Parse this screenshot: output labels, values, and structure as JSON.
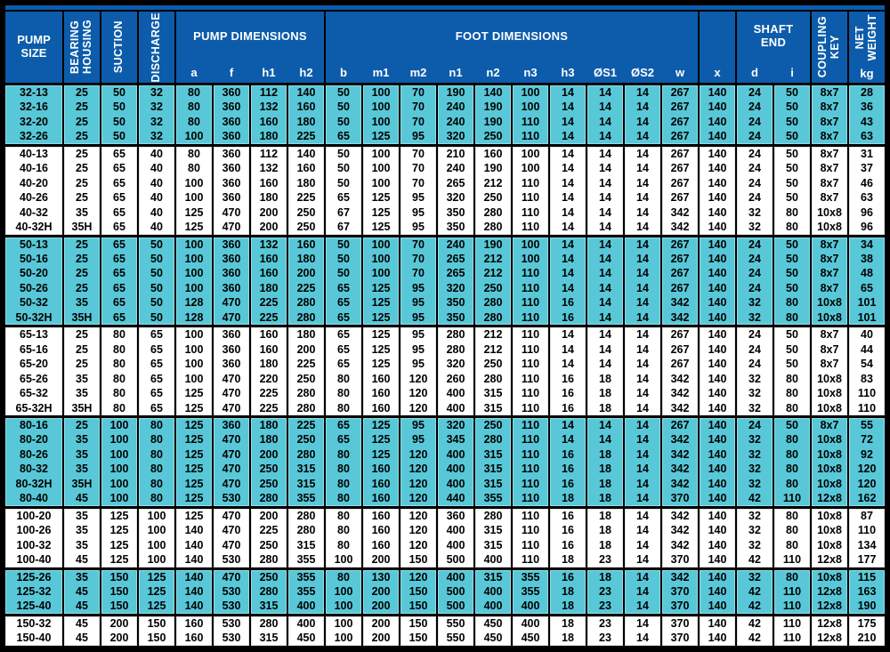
{
  "palette": {
    "header_bg": "#0d5cab",
    "header_text": "#ffffff",
    "row_cyan": "#58c8d8",
    "row_white": "#ffffff",
    "grid": "#000000",
    "data_text": "#000000"
  },
  "header": {
    "pump_size": [
      "PUMP",
      "SIZE"
    ],
    "bearing_housing": [
      "BEARING",
      "HOUSING"
    ],
    "suction": "SUCTION",
    "discharge": "DISCHARGE",
    "pump_dimensions": {
      "label": "PUMP DIMENSIONS",
      "cols": [
        "a",
        "f",
        "h1",
        "h2"
      ]
    },
    "foot_dimensions": {
      "label": "FOOT DIMENSIONS",
      "cols": [
        "b",
        "m1",
        "m2",
        "n1",
        "n2",
        "n3",
        "h3",
        "ØS1",
        "ØS2",
        "w"
      ]
    },
    "x_label": "x",
    "shaft_end": {
      "label": [
        "SHAFT",
        "END"
      ],
      "cols": [
        "d",
        "i"
      ]
    },
    "coupling_key": [
      "COUPLING",
      "KEY"
    ],
    "net_weight": {
      "label": [
        "NET",
        "WEIGHT"
      ],
      "unit": "kg"
    }
  },
  "columns": [
    "pump-size",
    "bearing-housing",
    "suction",
    "discharge",
    "a",
    "f",
    "h1",
    "h2",
    "b",
    "m1",
    "m2",
    "n1",
    "n2",
    "n3",
    "h3",
    "S1",
    "S2",
    "w",
    "x",
    "d",
    "i",
    "coupling-key",
    "kg"
  ],
  "groups": [
    {
      "name": "32",
      "bg": "cyan",
      "rows": [
        [
          "32-13",
          "25",
          "50",
          "32",
          "80",
          "360",
          "112",
          "140",
          "50",
          "100",
          "70",
          "190",
          "140",
          "100",
          "14",
          "14",
          "14",
          "267",
          "140",
          "24",
          "50",
          "8x7",
          "28"
        ],
        [
          "32-16",
          "25",
          "50",
          "32",
          "80",
          "360",
          "132",
          "160",
          "50",
          "100",
          "70",
          "240",
          "190",
          "100",
          "14",
          "14",
          "14",
          "267",
          "140",
          "24",
          "50",
          "8x7",
          "36"
        ],
        [
          "32-20",
          "25",
          "50",
          "32",
          "80",
          "360",
          "160",
          "180",
          "50",
          "100",
          "70",
          "240",
          "190",
          "110",
          "14",
          "14",
          "14",
          "267",
          "140",
          "24",
          "50",
          "8x7",
          "43"
        ],
        [
          "32-26",
          "25",
          "50",
          "32",
          "100",
          "360",
          "180",
          "225",
          "65",
          "125",
          "95",
          "320",
          "250",
          "110",
          "14",
          "14",
          "14",
          "267",
          "140",
          "24",
          "50",
          "8x7",
          "63"
        ]
      ]
    },
    {
      "name": "40",
      "bg": "white",
      "rows": [
        [
          "40-13",
          "25",
          "65",
          "40",
          "80",
          "360",
          "112",
          "140",
          "50",
          "100",
          "70",
          "210",
          "160",
          "100",
          "14",
          "14",
          "14",
          "267",
          "140",
          "24",
          "50",
          "8x7",
          "31"
        ],
        [
          "40-16",
          "25",
          "65",
          "40",
          "80",
          "360",
          "132",
          "160",
          "50",
          "100",
          "70",
          "240",
          "190",
          "100",
          "14",
          "14",
          "14",
          "267",
          "140",
          "24",
          "50",
          "8x7",
          "37"
        ],
        [
          "40-20",
          "25",
          "65",
          "40",
          "100",
          "360",
          "160",
          "180",
          "50",
          "100",
          "70",
          "265",
          "212",
          "110",
          "14",
          "14",
          "14",
          "267",
          "140",
          "24",
          "50",
          "8x7",
          "46"
        ],
        [
          "40-26",
          "25",
          "65",
          "40",
          "100",
          "360",
          "180",
          "225",
          "65",
          "125",
          "95",
          "320",
          "250",
          "110",
          "14",
          "14",
          "14",
          "267",
          "140",
          "24",
          "50",
          "8x7",
          "63"
        ],
        [
          "40-32",
          "35",
          "65",
          "40",
          "125",
          "470",
          "200",
          "250",
          "67",
          "125",
          "95",
          "350",
          "280",
          "110",
          "14",
          "14",
          "14",
          "342",
          "140",
          "32",
          "80",
          "10x8",
          "96"
        ],
        [
          "40-32H",
          "35H",
          "65",
          "40",
          "125",
          "470",
          "200",
          "250",
          "67",
          "125",
          "95",
          "350",
          "280",
          "110",
          "14",
          "14",
          "14",
          "342",
          "140",
          "32",
          "80",
          "10x8",
          "96"
        ]
      ]
    },
    {
      "name": "50",
      "bg": "cyan",
      "rows": [
        [
          "50-13",
          "25",
          "65",
          "50",
          "100",
          "360",
          "132",
          "160",
          "50",
          "100",
          "70",
          "240",
          "190",
          "100",
          "14",
          "14",
          "14",
          "267",
          "140",
          "24",
          "50",
          "8x7",
          "34"
        ],
        [
          "50-16",
          "25",
          "65",
          "50",
          "100",
          "360",
          "160",
          "180",
          "50",
          "100",
          "70",
          "265",
          "212",
          "100",
          "14",
          "14",
          "14",
          "267",
          "140",
          "24",
          "50",
          "8x7",
          "38"
        ],
        [
          "50-20",
          "25",
          "65",
          "50",
          "100",
          "360",
          "160",
          "200",
          "50",
          "100",
          "70",
          "265",
          "212",
          "110",
          "14",
          "14",
          "14",
          "267",
          "140",
          "24",
          "50",
          "8x7",
          "48"
        ],
        [
          "50-26",
          "25",
          "65",
          "50",
          "100",
          "360",
          "180",
          "225",
          "65",
          "125",
          "95",
          "320",
          "250",
          "110",
          "14",
          "14",
          "14",
          "267",
          "140",
          "24",
          "50",
          "8x7",
          "65"
        ],
        [
          "50-32",
          "35",
          "65",
          "50",
          "128",
          "470",
          "225",
          "280",
          "65",
          "125",
          "95",
          "350",
          "280",
          "110",
          "16",
          "14",
          "14",
          "342",
          "140",
          "32",
          "80",
          "10x8",
          "101"
        ],
        [
          "50-32H",
          "35H",
          "65",
          "50",
          "128",
          "470",
          "225",
          "280",
          "65",
          "125",
          "95",
          "350",
          "280",
          "110",
          "16",
          "14",
          "14",
          "342",
          "140",
          "32",
          "80",
          "10x8",
          "101"
        ]
      ]
    },
    {
      "name": "65",
      "bg": "white",
      "rows": [
        [
          "65-13",
          "25",
          "80",
          "65",
          "100",
          "360",
          "160",
          "180",
          "65",
          "125",
          "95",
          "280",
          "212",
          "110",
          "14",
          "14",
          "14",
          "267",
          "140",
          "24",
          "50",
          "8x7",
          "40"
        ],
        [
          "65-16",
          "25",
          "80",
          "65",
          "100",
          "360",
          "160",
          "200",
          "65",
          "125",
          "95",
          "280",
          "212",
          "110",
          "14",
          "14",
          "14",
          "267",
          "140",
          "24",
          "50",
          "8x7",
          "44"
        ],
        [
          "65-20",
          "25",
          "80",
          "65",
          "100",
          "360",
          "180",
          "225",
          "65",
          "125",
          "95",
          "320",
          "250",
          "110",
          "14",
          "14",
          "14",
          "267",
          "140",
          "24",
          "50",
          "8x7",
          "54"
        ],
        [
          "65-26",
          "35",
          "80",
          "65",
          "100",
          "470",
          "220",
          "250",
          "80",
          "160",
          "120",
          "260",
          "280",
          "110",
          "16",
          "18",
          "14",
          "342",
          "140",
          "32",
          "80",
          "10x8",
          "83"
        ],
        [
          "65-32",
          "35",
          "80",
          "65",
          "125",
          "470",
          "225",
          "280",
          "80",
          "160",
          "120",
          "400",
          "315",
          "110",
          "16",
          "18",
          "14",
          "342",
          "140",
          "32",
          "80",
          "10x8",
          "110"
        ],
        [
          "65-32H",
          "35H",
          "80",
          "65",
          "125",
          "470",
          "225",
          "280",
          "80",
          "160",
          "120",
          "400",
          "315",
          "110",
          "16",
          "18",
          "14",
          "342",
          "140",
          "32",
          "80",
          "10x8",
          "110"
        ]
      ]
    },
    {
      "name": "80",
      "bg": "cyan",
      "rows": [
        [
          "80-16",
          "25",
          "100",
          "80",
          "125",
          "360",
          "180",
          "225",
          "65",
          "125",
          "95",
          "320",
          "250",
          "110",
          "14",
          "14",
          "14",
          "267",
          "140",
          "24",
          "50",
          "8x7",
          "55"
        ],
        [
          "80-20",
          "35",
          "100",
          "80",
          "125",
          "470",
          "180",
          "250",
          "65",
          "125",
          "95",
          "345",
          "280",
          "110",
          "14",
          "14",
          "14",
          "342",
          "140",
          "32",
          "80",
          "10x8",
          "72"
        ],
        [
          "80-26",
          "35",
          "100",
          "80",
          "125",
          "470",
          "200",
          "280",
          "80",
          "125",
          "120",
          "400",
          "315",
          "110",
          "16",
          "18",
          "14",
          "342",
          "140",
          "32",
          "80",
          "10x8",
          "92"
        ],
        [
          "80-32",
          "35",
          "100",
          "80",
          "125",
          "470",
          "250",
          "315",
          "80",
          "160",
          "120",
          "400",
          "315",
          "110",
          "16",
          "18",
          "14",
          "342",
          "140",
          "32",
          "80",
          "10x8",
          "120"
        ],
        [
          "80-32H",
          "35H",
          "100",
          "80",
          "125",
          "470",
          "250",
          "315",
          "80",
          "160",
          "120",
          "400",
          "315",
          "110",
          "16",
          "18",
          "14",
          "342",
          "140",
          "32",
          "80",
          "10x8",
          "120"
        ],
        [
          "80-40",
          "45",
          "100",
          "80",
          "125",
          "530",
          "280",
          "355",
          "80",
          "160",
          "120",
          "440",
          "355",
          "110",
          "18",
          "18",
          "14",
          "370",
          "140",
          "42",
          "110",
          "12x8",
          "162"
        ]
      ]
    },
    {
      "name": "100",
      "bg": "white",
      "rows": [
        [
          "100-20",
          "35",
          "125",
          "100",
          "125",
          "470",
          "200",
          "280",
          "80",
          "160",
          "120",
          "360",
          "280",
          "110",
          "16",
          "18",
          "14",
          "342",
          "140",
          "32",
          "80",
          "10x8",
          "87"
        ],
        [
          "100-26",
          "35",
          "125",
          "100",
          "140",
          "470",
          "225",
          "280",
          "80",
          "160",
          "120",
          "400",
          "315",
          "110",
          "16",
          "18",
          "14",
          "342",
          "140",
          "32",
          "80",
          "10x8",
          "110"
        ],
        [
          "100-32",
          "35",
          "125",
          "100",
          "140",
          "470",
          "250",
          "315",
          "80",
          "160",
          "120",
          "400",
          "315",
          "110",
          "16",
          "18",
          "14",
          "342",
          "140",
          "32",
          "80",
          "10x8",
          "134"
        ],
        [
          "100-40",
          "45",
          "125",
          "100",
          "140",
          "530",
          "280",
          "355",
          "100",
          "200",
          "150",
          "500",
          "400",
          "110",
          "18",
          "23",
          "14",
          "370",
          "140",
          "42",
          "110",
          "12x8",
          "177"
        ]
      ]
    },
    {
      "name": "125",
      "bg": "cyan",
      "rows": [
        [
          "125-26",
          "35",
          "150",
          "125",
          "140",
          "470",
          "250",
          "355",
          "80",
          "130",
          "120",
          "400",
          "315",
          "355",
          "16",
          "18",
          "14",
          "342",
          "140",
          "32",
          "80",
          "10x8",
          "115"
        ],
        [
          "125-32",
          "45",
          "150",
          "125",
          "140",
          "530",
          "280",
          "355",
          "100",
          "200",
          "150",
          "500",
          "400",
          "355",
          "18",
          "23",
          "14",
          "370",
          "140",
          "42",
          "110",
          "12x8",
          "163"
        ],
        [
          "125-40",
          "45",
          "150",
          "125",
          "140",
          "530",
          "315",
          "400",
          "100",
          "200",
          "150",
          "500",
          "400",
          "400",
          "18",
          "23",
          "14",
          "370",
          "140",
          "42",
          "110",
          "12x8",
          "190"
        ]
      ]
    },
    {
      "name": "150",
      "bg": "white",
      "rows": [
        [
          "150-32",
          "45",
          "200",
          "150",
          "160",
          "530",
          "280",
          "400",
          "100",
          "200",
          "150",
          "550",
          "450",
          "400",
          "18",
          "23",
          "14",
          "370",
          "140",
          "42",
          "110",
          "12x8",
          "175"
        ],
        [
          "150-40",
          "45",
          "200",
          "150",
          "160",
          "530",
          "315",
          "450",
          "100",
          "200",
          "150",
          "550",
          "450",
          "450",
          "18",
          "23",
          "14",
          "370",
          "140",
          "42",
          "110",
          "12x8",
          "210"
        ]
      ]
    }
  ]
}
